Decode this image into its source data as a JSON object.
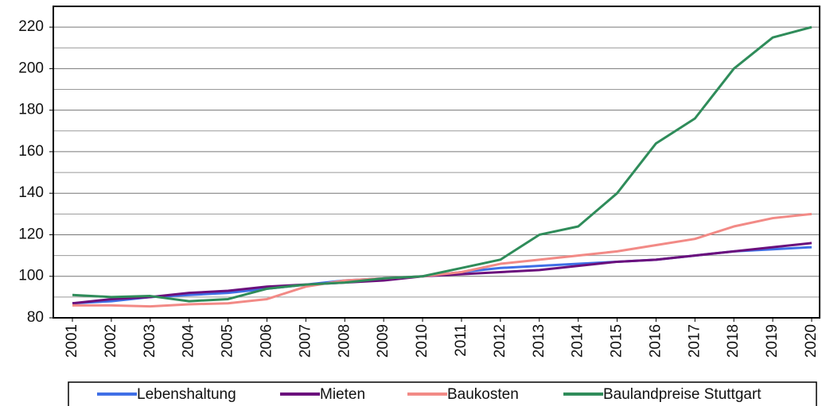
{
  "chart_data": {
    "type": "line",
    "categories": [
      "2001",
      "2002",
      "2003",
      "2004",
      "2005",
      "2006",
      "2007",
      "2008",
      "2009",
      "2010",
      "2011",
      "2012",
      "2013",
      "2014",
      "2015",
      "2016",
      "2017",
      "2018",
      "2019",
      "2020"
    ],
    "series": [
      {
        "name": "Lebenshaltung",
        "color": "#3f6fe6",
        "values": [
          87,
          88,
          90,
          91,
          92,
          94,
          96,
          98,
          99,
          100,
          102,
          104,
          105,
          106,
          107,
          108,
          110,
          112,
          113,
          114
        ]
      },
      {
        "name": "Mieten",
        "color": "#6b0f7c",
        "values": [
          87,
          89,
          90,
          92,
          93,
          95,
          96,
          97,
          98,
          100,
          101,
          102,
          103,
          105,
          107,
          108,
          110,
          112,
          114,
          116
        ]
      },
      {
        "name": "Baukosten",
        "color": "#f28a86",
        "values": [
          86,
          86,
          85.5,
          86.5,
          87,
          89,
          95,
          98,
          99,
          100,
          102,
          106,
          108,
          110,
          112,
          115,
          118,
          124,
          128,
          130
        ]
      },
      {
        "name": "Baulandpreise Stuttgart",
        "color": "#2f8c5a",
        "values": [
          91,
          90,
          90.5,
          88,
          89,
          94,
          96,
          97,
          99,
          100,
          104,
          108,
          120,
          124,
          140,
          164,
          176,
          200,
          215,
          220
        ]
      }
    ],
    "ylim": [
      80,
      230
    ],
    "yticks": [
      80,
      100,
      120,
      140,
      160,
      180,
      200,
      220
    ],
    "yminorticks": [
      90,
      110,
      130,
      150,
      170,
      190,
      210,
      230
    ],
    "grid": true,
    "legend": "bottom"
  }
}
